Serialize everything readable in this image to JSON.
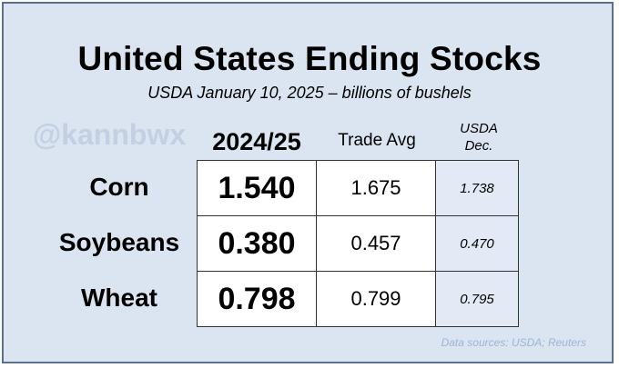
{
  "title": "United States Ending Stocks",
  "subtitle": "USDA January 10, 2025 – billions of bushels",
  "watermark": "@kannbwx",
  "columns": {
    "main": "2024/25",
    "trade": "Trade Avg",
    "dec_line1": "USDA",
    "dec_line2": "Dec."
  },
  "rows": [
    {
      "label": "Corn",
      "main": "1.540",
      "trade": "1.675",
      "dec": "1.738"
    },
    {
      "label": "Soybeans",
      "main": "0.380",
      "trade": "0.457",
      "dec": "0.470"
    },
    {
      "label": "Wheat",
      "main": "0.798",
      "trade": "0.799",
      "dec": "0.795"
    }
  ],
  "sources": "Data sources: USDA; Reuters",
  "colors": {
    "frame_border": "#5b6f8f",
    "background": "#dbe5f1",
    "dec_cell": "#e3eaf5",
    "sources_text": "#9cb4d4",
    "watermark_text": "#c3d0e3"
  }
}
